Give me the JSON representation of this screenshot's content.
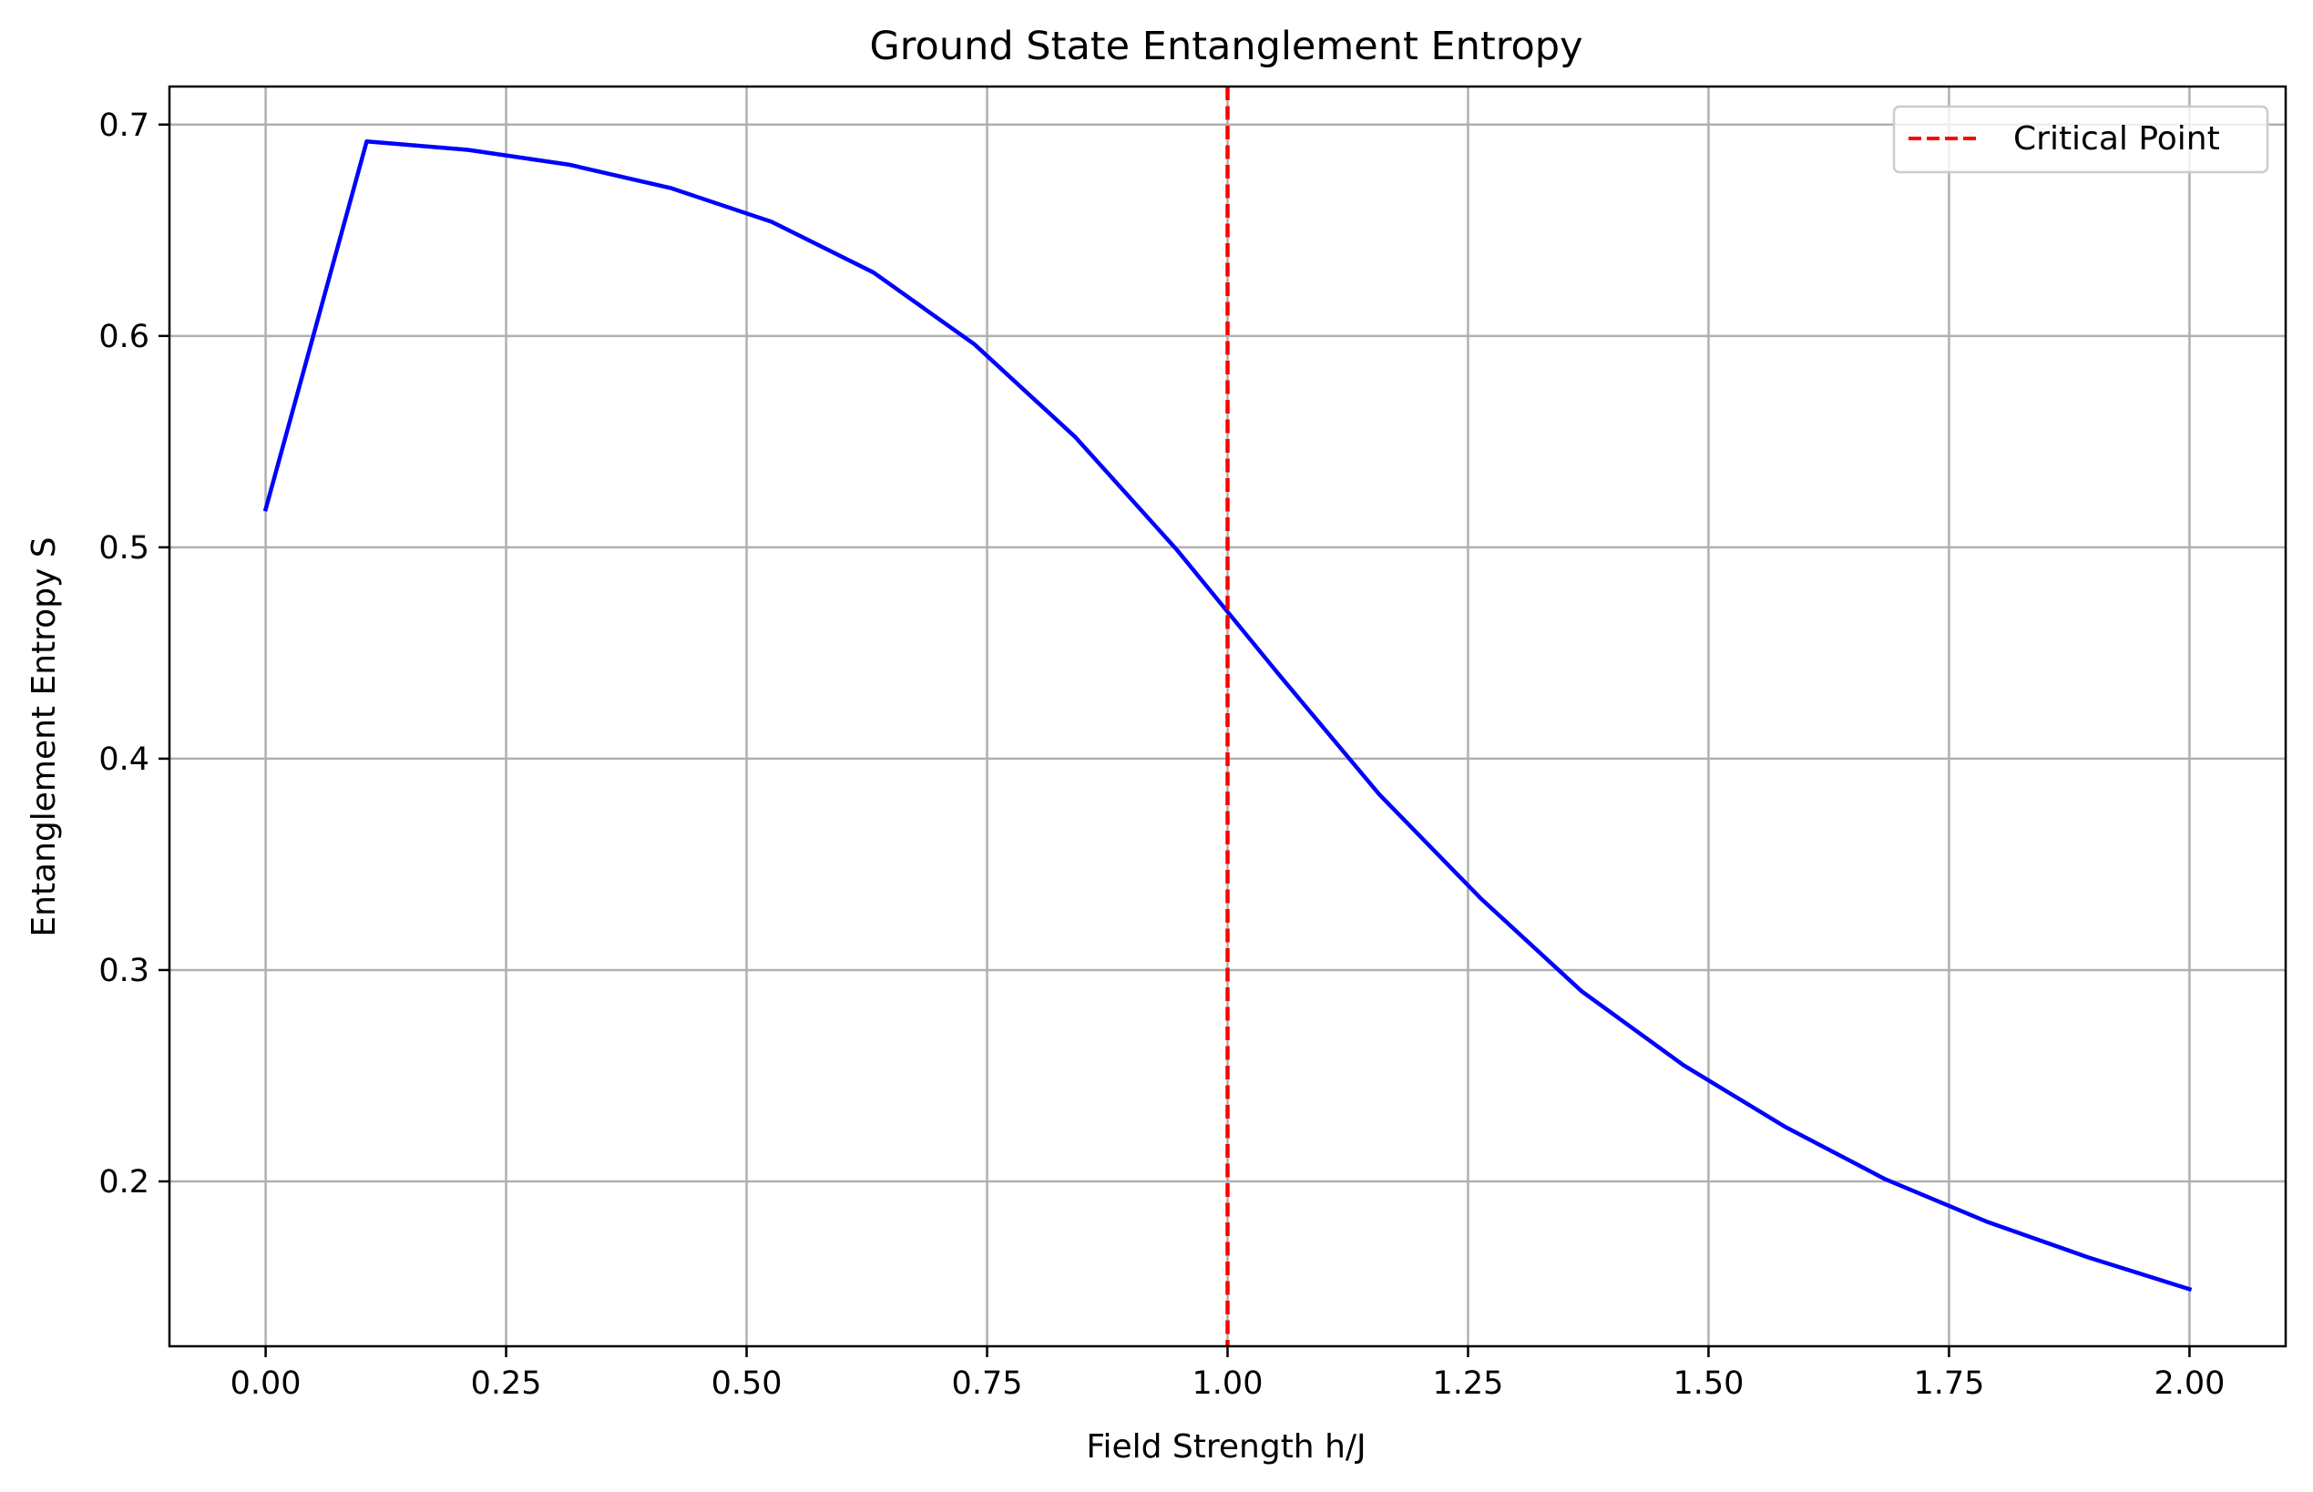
{
  "chart_data": {
    "type": "line",
    "title": "Ground State Entanglement Entropy",
    "xlabel": "Field Strength h/J",
    "ylabel": "Entanglement Entropy S",
    "xlim": [
      -0.1,
      2.1
    ],
    "ylim": [
      0.122,
      0.718
    ],
    "grid": true,
    "legend_position": "top-right",
    "x_ticks": [
      0.0,
      0.25,
      0.5,
      0.75,
      1.0,
      1.25,
      1.5,
      1.75,
      2.0
    ],
    "x_tick_labels": [
      "0.00",
      "0.25",
      "0.50",
      "0.75",
      "1.00",
      "1.25",
      "1.50",
      "1.75",
      "2.00"
    ],
    "y_ticks": [
      0.2,
      0.3,
      0.4,
      0.5,
      0.6,
      0.7
    ],
    "y_tick_labels": [
      "0.2",
      "0.3",
      "0.4",
      "0.5",
      "0.6",
      "0.7"
    ],
    "series": [
      {
        "color": "#0000ff",
        "style": "solid",
        "x": [
          0.0,
          0.105,
          0.211,
          0.316,
          0.421,
          0.526,
          0.632,
          0.737,
          0.842,
          0.947,
          1.053,
          1.158,
          1.263,
          1.368,
          1.474,
          1.579,
          1.684,
          1.789,
          1.895,
          2.0
        ],
        "y": [
          0.518,
          0.692,
          0.688,
          0.681,
          0.67,
          0.654,
          0.63,
          0.596,
          0.552,
          0.499,
          0.44,
          0.383,
          0.334,
          0.29,
          0.255,
          0.226,
          0.201,
          0.181,
          0.164,
          0.149
        ]
      },
      {
        "name": "Critical Point",
        "color": "#ff0000",
        "style": "dashed",
        "type": "vline",
        "x": 1.0
      }
    ]
  }
}
